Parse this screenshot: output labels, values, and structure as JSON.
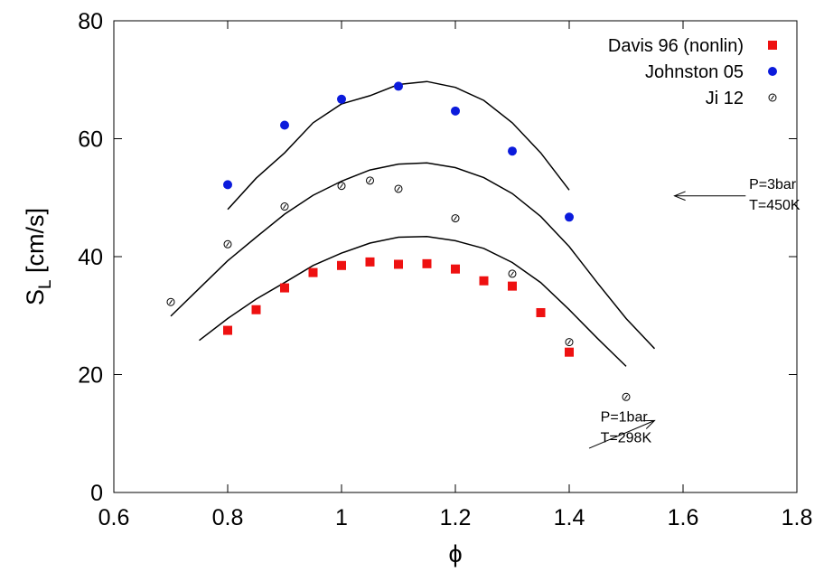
{
  "chart_data": {
    "type": "scatter",
    "title": "",
    "xlabel": "ϕ",
    "ylabel_main": "S",
    "ylabel_sub": "L",
    "ylabel_unit": " [cm/s]",
    "xlim": [
      0.6,
      1.8
    ],
    "ylim": [
      0,
      80
    ],
    "xticks": [
      0.6,
      0.8,
      1,
      1.2,
      1.4,
      1.6,
      1.8
    ],
    "xtick_labels": [
      "0.6",
      "0.8",
      "1",
      "1.2",
      "1.4",
      "1.6",
      "1.8"
    ],
    "yticks": [
      0,
      20,
      40,
      60,
      80
    ],
    "ytick_labels": [
      "0",
      "20",
      "40",
      "60",
      "80"
    ],
    "grid": false,
    "legend_position": "top-right",
    "series": [
      {
        "name": "Davis 96 (nonlin)",
        "marker": "square",
        "color": "#ee1111",
        "x": [
          0.8,
          0.85,
          0.9,
          0.95,
          1.0,
          1.05,
          1.1,
          1.15,
          1.2,
          1.25,
          1.3,
          1.35,
          1.4
        ],
        "y": [
          27.5,
          31.0,
          34.7,
          37.3,
          38.5,
          39.1,
          38.7,
          38.8,
          37.9,
          35.9,
          35.0,
          30.5,
          23.8
        ]
      },
      {
        "name": "Johnston 05",
        "marker": "circle-filled",
        "color": "#0b1bdc",
        "x": [
          0.8,
          0.9,
          1.0,
          1.1,
          1.2,
          1.3,
          1.4
        ],
        "y": [
          52.2,
          62.3,
          66.7,
          68.9,
          64.7,
          57.9,
          46.7
        ]
      },
      {
        "name": "Ji 12",
        "marker": "circle-open",
        "color": "#000000",
        "x": [
          0.7,
          0.8,
          0.9,
          1.0,
          1.05,
          1.1,
          1.2,
          1.3,
          1.4,
          1.5
        ],
        "y": [
          32.3,
          42.1,
          48.5,
          52.0,
          52.9,
          51.5,
          46.5,
          37.1,
          25.5,
          16.2
        ]
      }
    ],
    "lines": [
      {
        "color": "#000000",
        "x": [
          0.75,
          0.8,
          0.85,
          0.9,
          0.95,
          1.0,
          1.05,
          1.1,
          1.15,
          1.2,
          1.25,
          1.3,
          1.35,
          1.4,
          1.45,
          1.5
        ],
        "y": [
          25.8,
          29.5,
          32.8,
          35.6,
          38.5,
          40.6,
          42.3,
          43.3,
          43.4,
          42.7,
          41.4,
          39.0,
          35.6,
          31.0,
          26.1,
          21.4
        ]
      },
      {
        "color": "#000000",
        "x": [
          0.7,
          0.75,
          0.8,
          0.85,
          0.9,
          0.95,
          1.0,
          1.05,
          1.1,
          1.15,
          1.2,
          1.25,
          1.3,
          1.35,
          1.4,
          1.45,
          1.5,
          1.55
        ],
        "y": [
          29.9,
          34.6,
          39.3,
          43.3,
          47.2,
          50.4,
          52.8,
          54.7,
          55.7,
          55.9,
          55.1,
          53.4,
          50.7,
          46.8,
          41.7,
          35.5,
          29.5,
          24.4
        ]
      },
      {
        "color": "#000000",
        "x": [
          0.8,
          0.85,
          0.9,
          0.95,
          1.0,
          1.05,
          1.1,
          1.15,
          1.2,
          1.25,
          1.3,
          1.35,
          1.4
        ],
        "y": [
          48.0,
          53.3,
          57.6,
          62.7,
          65.9,
          67.3,
          69.2,
          69.7,
          68.7,
          66.5,
          62.7,
          57.6,
          51.3
        ]
      }
    ],
    "annotations": [
      {
        "lines": [
          "P=3bar",
          "T=450K"
        ],
        "text_at": [
          1.716,
          51.5
        ],
        "arrow_from": [
          1.71,
          50.3
        ],
        "arrow_to": [
          1.585,
          50.3
        ]
      },
      {
        "lines": [
          "P=1bar",
          "T=298K"
        ],
        "text_at": [
          1.455,
          12.0
        ],
        "arrow_from": [
          1.435,
          7.5
        ],
        "arrow_to": [
          1.55,
          12.2
        ]
      }
    ]
  }
}
